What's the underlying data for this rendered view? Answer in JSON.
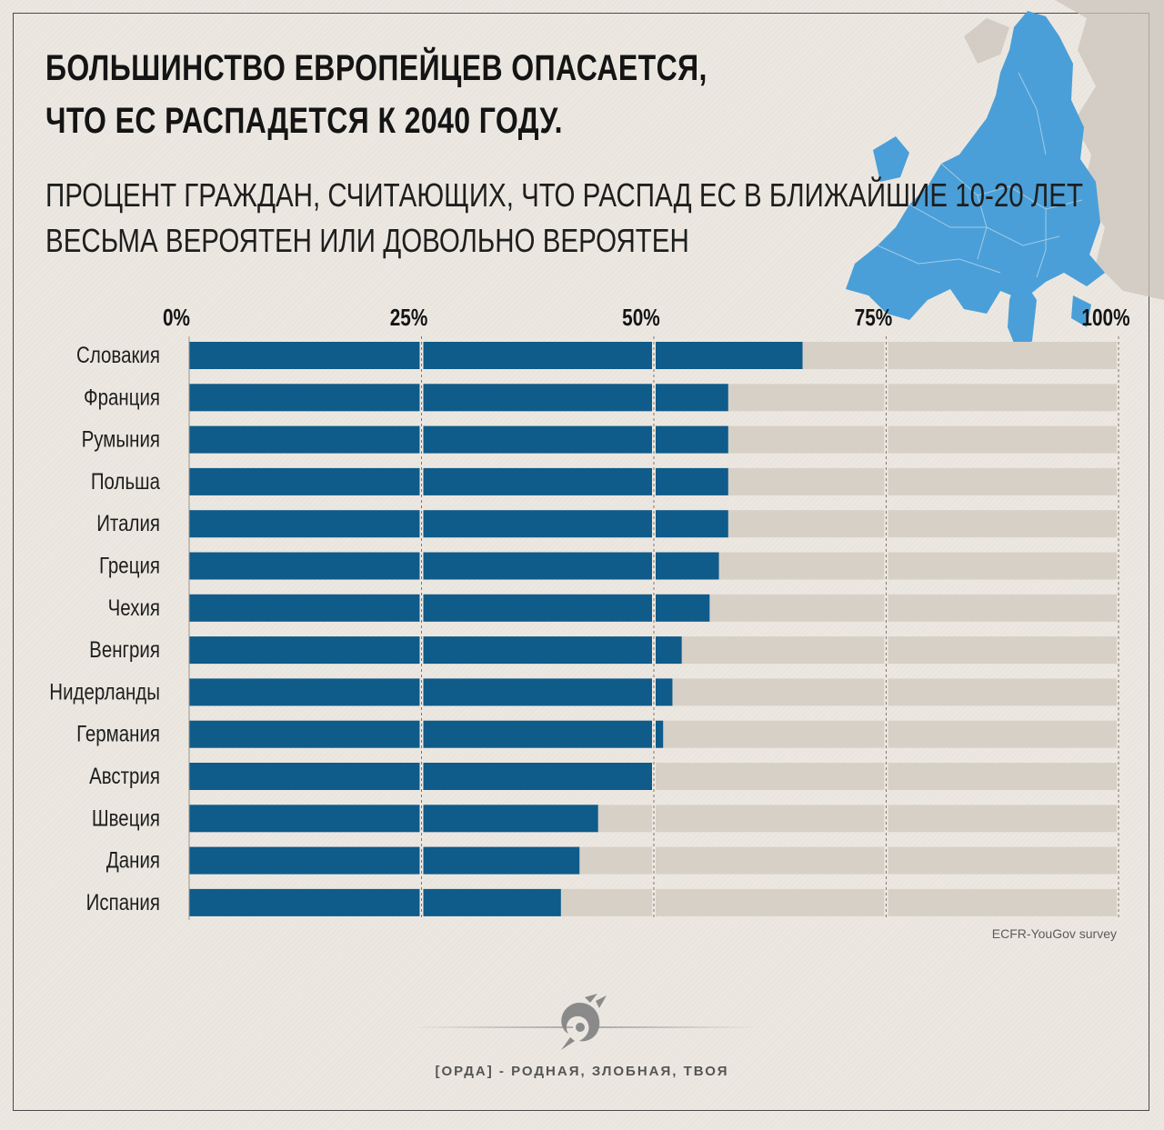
{
  "title_line1": "БОЛЬШИНСТВО ЕВРОПЕЙЦЕВ ОПАСАЕТСЯ,",
  "title_line2": "ЧТО ЕС РАСПАДЕТСЯ К 2040 ГОДУ.",
  "subtitle_line1": "ПРОЦЕНТ ГРАЖДАН, СЧИТАЮЩИХ, ЧТО РАСПАД ЕС В БЛИЖАЙШИЕ 10-20 ЛЕТ",
  "subtitle_line2": "ВЕСЬМА ВЕРОЯТЕН ИЛИ ДОВОЛЬНО ВЕРОЯТЕН",
  "source": "ECFR-YouGov survey",
  "footer": "[ОРДА] - РОДНАЯ, ЗЛОБНАЯ, ТВОЯ",
  "colors": {
    "bar": "#0f5b8a",
    "track": "#d7d0c7",
    "map_eu": "#4a9fd8",
    "map_other": "#cbc4bb",
    "text": "#141414"
  },
  "chart_data": {
    "type": "bar",
    "orientation": "horizontal",
    "categories": [
      "Словакия",
      "Франция",
      "Румыния",
      "Польша",
      "Италия",
      "Греция",
      "Чехия",
      "Венгрия",
      "Нидерланды",
      "Германия",
      "Австрия",
      "Швеция",
      "Дания",
      "Испания"
    ],
    "values": [
      66,
      58,
      58,
      58,
      58,
      57,
      56,
      53,
      52,
      51,
      50,
      44,
      42,
      40
    ],
    "xlim": [
      0,
      100
    ],
    "ticks": [
      0,
      25,
      50,
      75,
      100
    ],
    "tick_labels": [
      "0%",
      "25%",
      "50%",
      "75%",
      "100%"
    ],
    "grid": true
  }
}
